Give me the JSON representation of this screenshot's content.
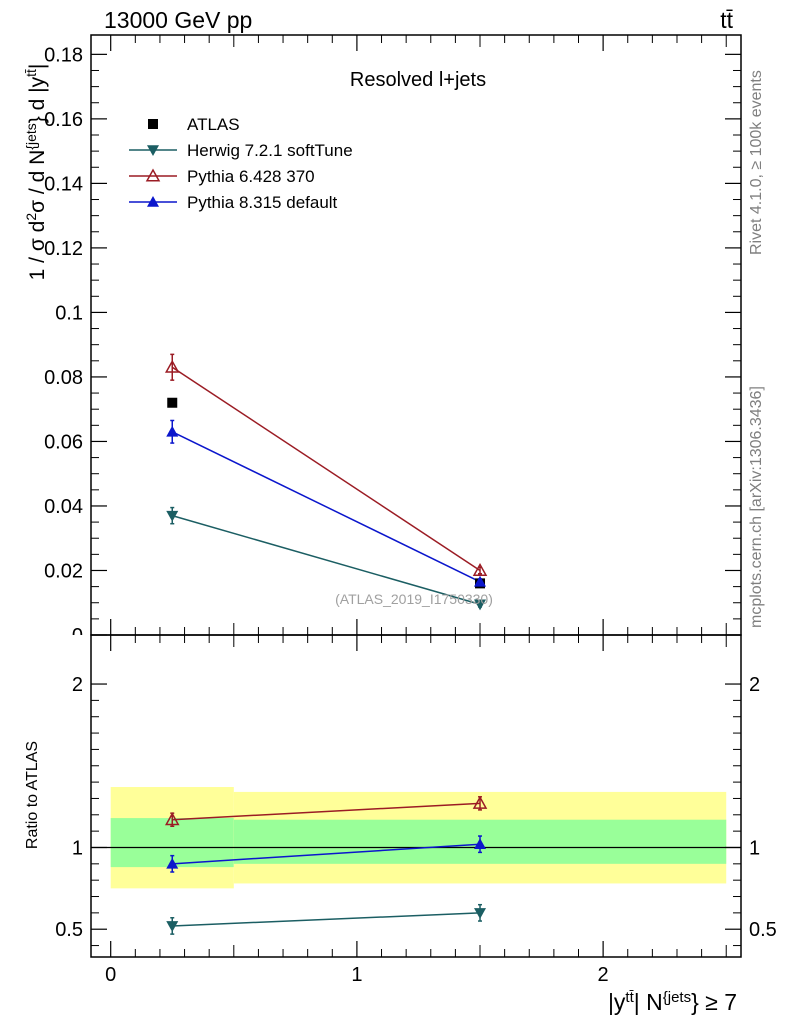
{
  "header": {
    "left": "13000 GeV pp",
    "right": "tt̄"
  },
  "side_labels": {
    "rivet": "Rivet 4.1.0, ≥ 100k events",
    "mcplots": "mcplots.cern.ch [arXiv:1306.3436]"
  },
  "chart_data": [
    {
      "type": "scatter",
      "title": "Resolved l+jets",
      "watermark": "(ATLAS_2019_I1750330)",
      "ylabel_main": "1 / σ d²σ / d N^{jets} } d |y^{tt̄}|",
      "xlim": [
        -0.08,
        2.56
      ],
      "ylim": [
        0,
        0.186
      ],
      "yticks": [
        0,
        0.02,
        0.04,
        0.06,
        0.08,
        0.1,
        0.12,
        0.14,
        0.16,
        0.18
      ],
      "ytick_labels": [
        "0",
        "0.02",
        "0.04",
        "0.06",
        "0.08",
        "0.1",
        "0.12",
        "0.14",
        "0.16",
        "0.18"
      ],
      "legend": [
        {
          "name": "ATLAS",
          "marker": "square",
          "color": "#000000"
        },
        {
          "name": "Herwig 7.2.1 softTune",
          "marker": "triangle-down",
          "color": "#1b5e63"
        },
        {
          "name": "Pythia 6.428 370",
          "marker": "triangle-open",
          "color": "#9b1c24"
        },
        {
          "name": "Pythia 8.315 default",
          "marker": "triangle-up",
          "color": "#0b16cc"
        }
      ],
      "series": [
        {
          "name": "ATLAS",
          "x": [
            0.25,
            1.5
          ],
          "y": [
            0.072,
            0.016
          ],
          "err": [
            0.0008,
            0.0004
          ],
          "color": "#000000",
          "marker": "square",
          "line": false
        },
        {
          "name": "Herwig 7.2.1 softTune",
          "x": [
            0.25,
            1.5
          ],
          "y": [
            0.037,
            0.0095
          ],
          "err": [
            0.0025,
            0.0008
          ],
          "color": "#1b5e63",
          "marker": "triangle-down",
          "line": true
        },
        {
          "name": "Pythia 6.428 370",
          "x": [
            0.25,
            1.5
          ],
          "y": [
            0.083,
            0.02
          ],
          "err": [
            0.004,
            0.001
          ],
          "color": "#9b1c24",
          "marker": "triangle-open",
          "line": true
        },
        {
          "name": "Pythia 8.315 default",
          "x": [
            0.25,
            1.5
          ],
          "y": [
            0.063,
            0.0165
          ],
          "err": [
            0.0035,
            0.0009
          ],
          "color": "#0b16cc",
          "marker": "triangle-up",
          "line": true
        }
      ]
    },
    {
      "type": "scatter",
      "ylabel": "Ratio to ATLAS",
      "xlabel": "|y^{tt̄}| N^{jets} } ≥ 7",
      "xlim": [
        -0.08,
        2.56
      ],
      "ylim": [
        0.33,
        2.3
      ],
      "xticks": [
        0,
        1,
        2
      ],
      "xtick_labels": [
        "0",
        "1",
        "2"
      ],
      "yticks": [
        0.5,
        1,
        2
      ],
      "ytick_labels": [
        "0.5",
        "1",
        "2"
      ],
      "bands": [
        {
          "x0": 0,
          "x1": 0.5,
          "yellow": [
            0.75,
            1.37
          ],
          "green": [
            0.88,
            1.18
          ]
        },
        {
          "x0": 0.5,
          "x1": 2.5,
          "yellow": [
            0.78,
            1.34
          ],
          "green": [
            0.9,
            1.17
          ]
        }
      ],
      "band_colors": {
        "yellow": "#ffff99",
        "green": "#99ff99"
      },
      "series": [
        {
          "name": "Herwig 7.2.1 softTune",
          "x": [
            0.25,
            1.5
          ],
          "y": [
            0.52,
            0.6
          ],
          "err": [
            0.05,
            0.05
          ],
          "color": "#1b5e63",
          "marker": "triangle-down"
        },
        {
          "name": "Pythia 6.428 370",
          "x": [
            0.25,
            1.5
          ],
          "y": [
            1.17,
            1.27
          ],
          "err": [
            0.04,
            0.04
          ],
          "color": "#9b1c24",
          "marker": "triangle-open"
        },
        {
          "name": "Pythia 8.315 default",
          "x": [
            0.25,
            1.5
          ],
          "y": [
            0.9,
            1.02
          ],
          "err": [
            0.05,
            0.05
          ],
          "color": "#0b16cc",
          "marker": "triangle-up"
        }
      ]
    }
  ]
}
